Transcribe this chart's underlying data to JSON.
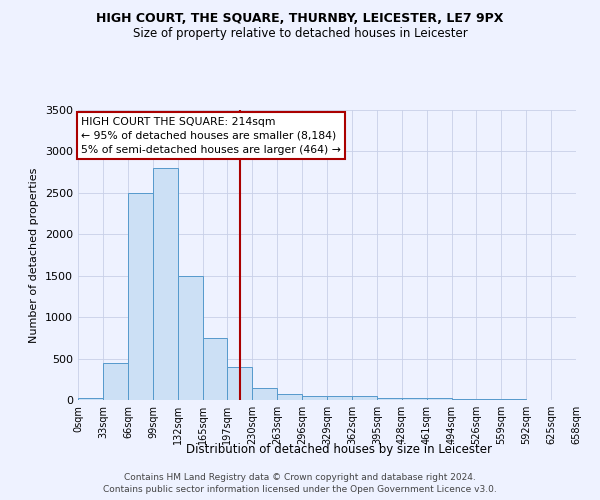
{
  "title": "HIGH COURT, THE SQUARE, THURNBY, LEICESTER, LE7 9PX",
  "subtitle": "Size of property relative to detached houses in Leicester",
  "xlabel": "Distribution of detached houses by size in Leicester",
  "ylabel": "Number of detached properties",
  "footer1": "Contains HM Land Registry data © Crown copyright and database right 2024.",
  "footer2": "Contains public sector information licensed under the Open Government Licence v3.0.",
  "annotation_title": "HIGH COURT THE SQUARE: 214sqm",
  "annotation_line2": "← 95% of detached houses are smaller (8,184)",
  "annotation_line3": "5% of semi-detached houses are larger (464) →",
  "property_sqm": 214,
  "bin_edges": [
    0,
    33,
    66,
    99,
    132,
    165,
    197,
    230,
    263,
    296,
    329,
    362,
    395,
    428,
    461,
    494,
    526,
    559,
    592,
    625,
    658
  ],
  "bar_heights": [
    30,
    450,
    2500,
    2800,
    1500,
    750,
    400,
    150,
    75,
    50,
    50,
    50,
    30,
    30,
    20,
    15,
    10,
    10,
    5,
    5
  ],
  "bar_color": "#cce0f5",
  "bar_edge_color": "#5599cc",
  "vline_color": "#aa0000",
  "annotation_box_color": "#aa0000",
  "bg_color": "#eef2ff",
  "grid_color": "#c8d0e8",
  "ylim": [
    0,
    3500
  ],
  "yticks": [
    0,
    500,
    1000,
    1500,
    2000,
    2500,
    3000,
    3500
  ]
}
